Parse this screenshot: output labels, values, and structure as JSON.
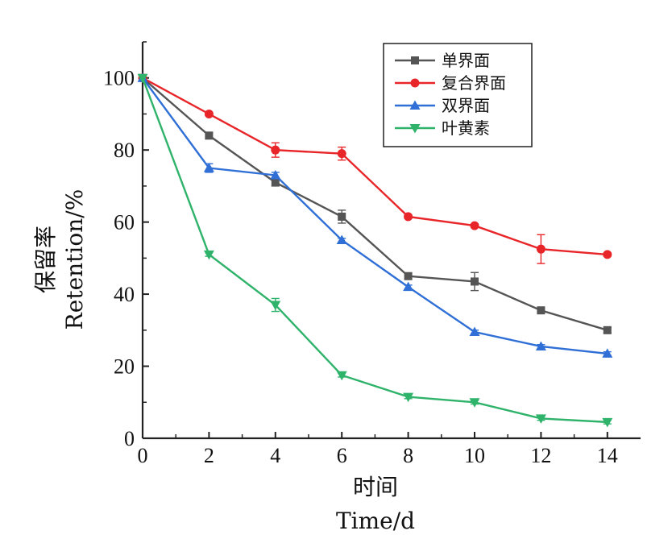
{
  "chart_data": {
    "type": "line",
    "xlabel_cn": "时间",
    "xlabel_en": "Time/d",
    "ylabel_cn": "保留率",
    "ylabel_en": "Retention/%",
    "xlim": [
      0,
      15
    ],
    "ylim": [
      0,
      110
    ],
    "x_ticks": [
      0,
      2,
      4,
      6,
      8,
      10,
      12,
      14
    ],
    "y_ticks": [
      0,
      20,
      40,
      60,
      80,
      100
    ],
    "grid": false,
    "legend_position": "top-right",
    "x": [
      0,
      2,
      4,
      6,
      8,
      10,
      12,
      14
    ],
    "series": [
      {
        "name": "单界面",
        "color": "#555555",
        "marker": "square",
        "values": [
          100,
          84,
          71,
          61.5,
          45,
          43.5,
          35.5,
          30
        ],
        "errors": [
          0,
          0.8,
          1,
          1.8,
          0.8,
          2.5,
          0.5,
          0.8
        ]
      },
      {
        "name": "复合界面",
        "color": "#e8262a",
        "marker": "circle",
        "values": [
          100,
          90,
          80,
          79,
          61.5,
          59,
          52.5,
          51
        ],
        "errors": [
          0,
          0.5,
          2,
          1.8,
          0.5,
          0.5,
          4,
          0.5
        ]
      },
      {
        "name": "双界面",
        "color": "#2f6fd6",
        "marker": "triangle-up",
        "values": [
          100,
          75,
          73,
          55,
          42,
          29.5,
          25.5,
          23.5
        ],
        "errors": [
          0,
          1.2,
          0.8,
          0.5,
          0.5,
          0.5,
          0.5,
          0.5
        ]
      },
      {
        "name": "叶黄素",
        "color": "#2fb36a",
        "marker": "triangle-down",
        "values": [
          100,
          51,
          37,
          17.5,
          11.5,
          10,
          5.5,
          4.5
        ],
        "errors": [
          0,
          0.5,
          1.8,
          0.5,
          0.5,
          0.5,
          0.5,
          0.5
        ]
      }
    ]
  }
}
